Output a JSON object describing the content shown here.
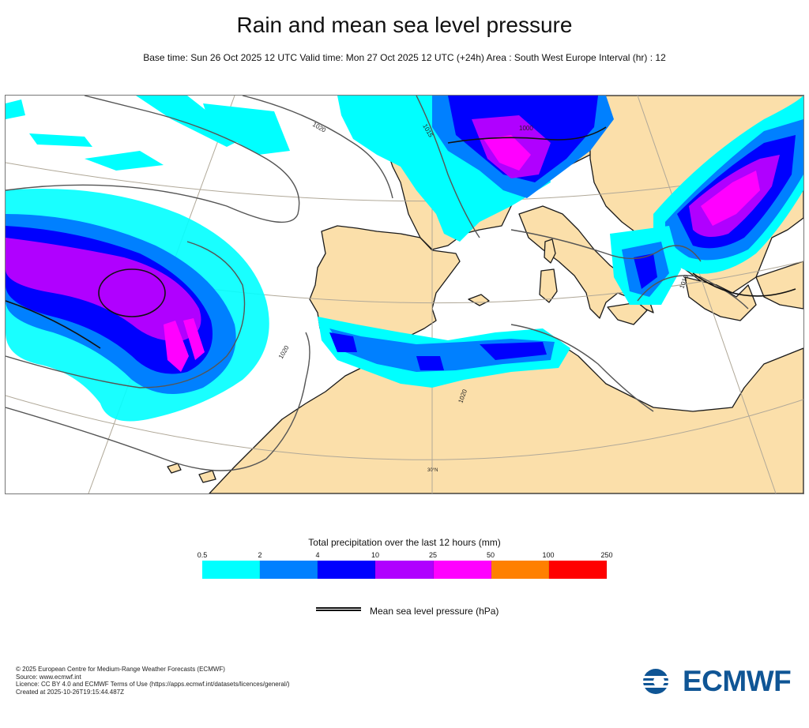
{
  "title": "Rain and mean sea level pressure",
  "subtitle": "Base time: Sun 26 Oct 2025 12 UTC Valid time: Mon 27 Oct 2025 12 UTC (+24h) Area : South West Europe Interval (hr) : 12",
  "map": {
    "area": "South West Europe",
    "contour_labels": [
      "1020",
      "1015",
      "1000",
      "1010",
      "1020",
      "1020",
      "1010",
      "1020"
    ],
    "latitude_label": "30°N",
    "colors": {
      "land": "#fbdfaa",
      "sea": "#ffffff",
      "coastline": "#1a1a1a",
      "graticule": "#b0a898",
      "isobar": "#555555"
    }
  },
  "legend": {
    "title": "Total precipitation over the last 12 hours (mm)",
    "ticks": [
      "0.5",
      "2",
      "4",
      "10",
      "25",
      "50",
      "100",
      "250"
    ],
    "colors": [
      "#00ffff",
      "#0080ff",
      "#0000fe",
      "#b000ff",
      "#ff00ff",
      "#ff8000",
      "#ff0000"
    ]
  },
  "pressure_legend": {
    "label": "Mean sea level pressure (hPa)"
  },
  "credits": [
    "© 2025 European Centre for Medium-Range Weather Forecasts (ECMWF)",
    "Source: www.ecmwf.int",
    "Licence: CC BY 4.0 and ECMWF Terms of Use (https://apps.ecmwf.int/datasets/licences/general/)",
    "Created at 2025-10-26T19:15:44.487Z"
  ],
  "logo": {
    "text": "ECMWF",
    "color": "#0f5595"
  }
}
